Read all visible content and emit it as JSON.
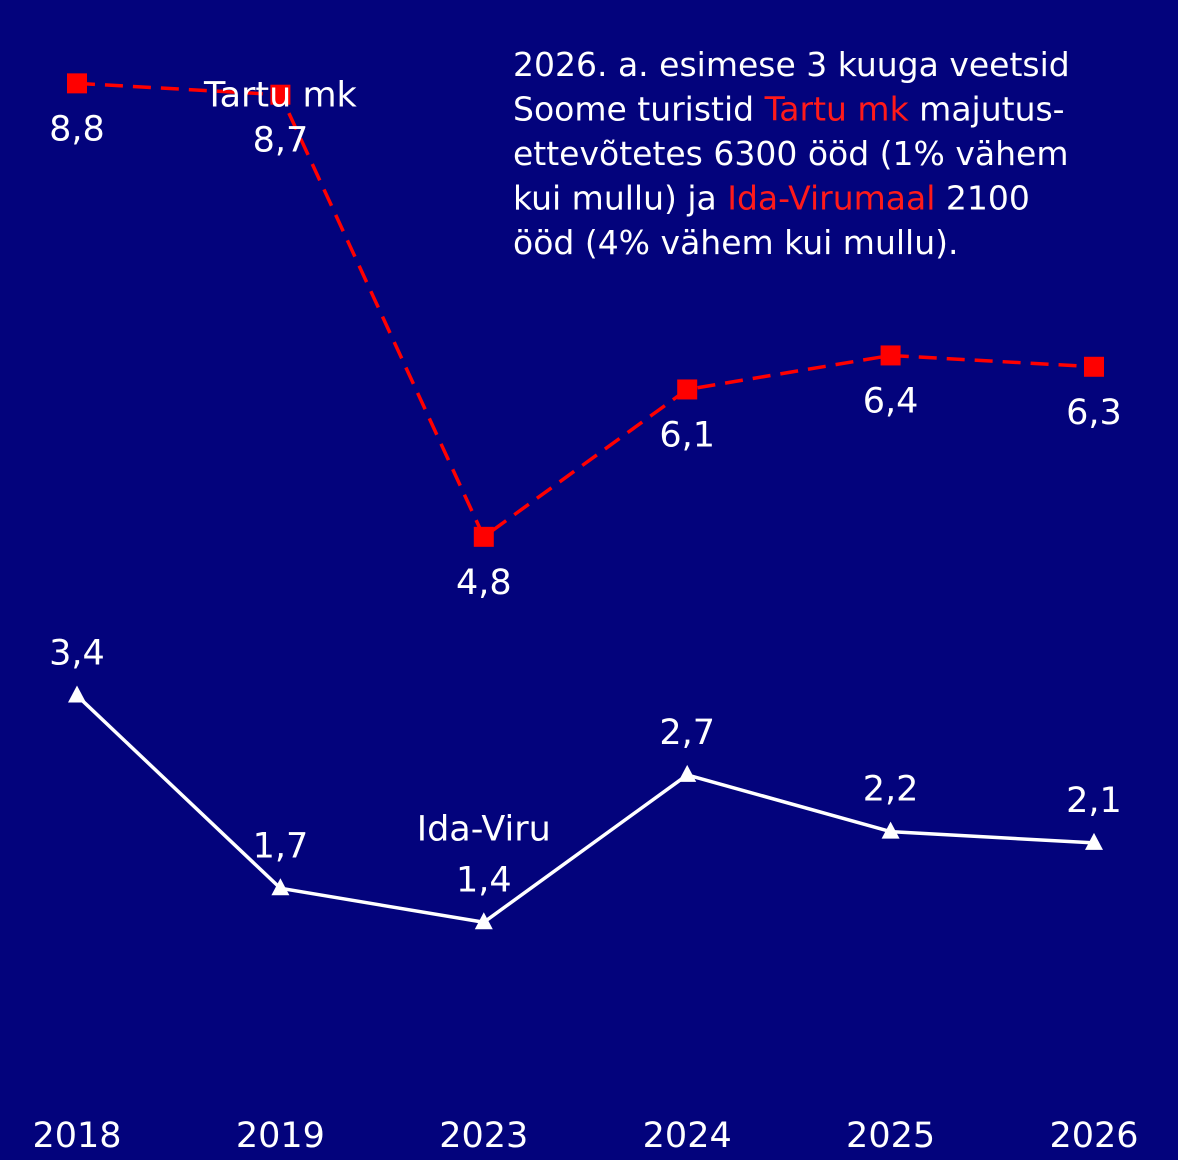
{
  "chart_data": {
    "type": "line",
    "annotation": [
      [
        {
          "text": "2026. a. esimese 3 kuuga veetsid",
          "color": "#ffffff"
        }
      ],
      [
        {
          "text": "Soome turistid ",
          "color": "#ffffff"
        },
        {
          "text": "Tartu mk",
          "color": "#ff1a1a"
        },
        {
          "text": " majutus-",
          "color": "#ffffff"
        }
      ],
      [
        {
          "text": "ettevõtetes 6300 ööd (1% vähem",
          "color": "#ffffff"
        }
      ],
      [
        {
          "text": "kui mullu) ja ",
          "color": "#ffffff"
        },
        {
          "text": "Ida-Virumaal",
          "color": "#ff1a1a"
        },
        {
          "text": " 2100",
          "color": "#ffffff"
        }
      ],
      [
        {
          "text": "ööd (4% vähem kui mullu).",
          "color": "#ffffff"
        }
      ]
    ],
    "categories": [
      "2018",
      "2019",
      "2023",
      "2024",
      "2025",
      "2026"
    ],
    "series": [
      {
        "name": "Tartu mk",
        "color": "#ff0000",
        "marker": "square",
        "dashed": true,
        "values": [
          8.8,
          8.7,
          4.8,
          6.1,
          6.4,
          6.3
        ],
        "value_labels": [
          "8,8",
          "8,7",
          "4,8",
          "6,1",
          "6,4",
          "6,3"
        ]
      },
      {
        "name": "Ida-Viru",
        "color": "#ffffff",
        "marker": "triangle",
        "dashed": false,
        "values": [
          3.4,
          1.7,
          1.4,
          2.7,
          2.2,
          2.1
        ],
        "value_labels": [
          "3,4",
          "1,7",
          "1,4",
          "2,7",
          "2,2",
          "2,1"
        ]
      }
    ],
    "ylim": [
      0,
      9.5
    ]
  }
}
